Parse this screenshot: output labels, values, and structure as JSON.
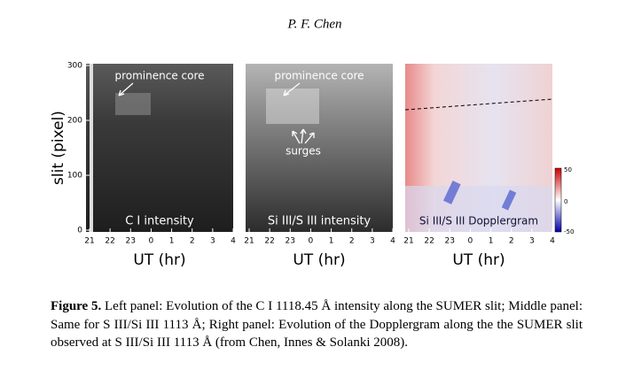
{
  "header": {
    "author": "P. F. Chen"
  },
  "figure": {
    "y_label": "slit (pixel)",
    "y_ticks": [
      "300",
      "200",
      "100",
      "0"
    ],
    "x_label": "UT (hr)",
    "x_ticks": [
      "21",
      "22",
      "23",
      "0",
      "1",
      "2",
      "3",
      "4"
    ],
    "panels": [
      {
        "label": "C I intensity",
        "annotations": [
          "prominence core"
        ]
      },
      {
        "label": "Si III/S III intensity",
        "annotations": [
          "prominence core",
          "surges"
        ]
      },
      {
        "label": "Si III/S III Dopplergram",
        "colorbar_ticks": [
          "50",
          "0",
          "-50"
        ]
      }
    ]
  },
  "caption": {
    "label": "Figure 5.",
    "text": "Left panel: Evolution of the C I 1118.45 Å intensity along the SUMER slit; Middle panel: Same for S III/Si III 1113 Å; Right panel: Evolution of the Dopplergram along the the SUMER slit observed at S III/Si III 1113 Å (from Chen, Innes & Solanki  2008)."
  }
}
